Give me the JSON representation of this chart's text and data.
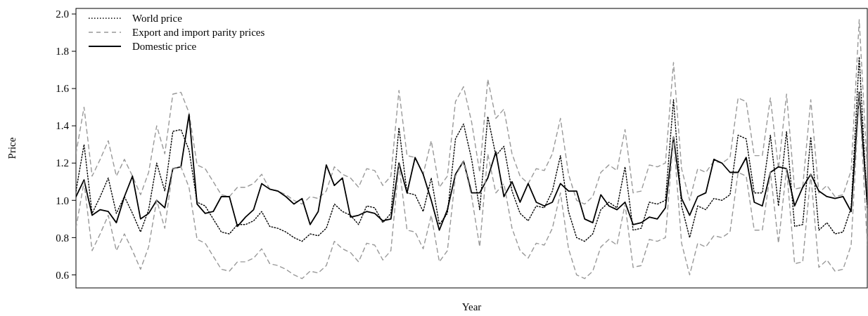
{
  "chart_data": {
    "type": "line",
    "xlabel": "Year",
    "ylabel": "Price",
    "legend": "top left",
    "ylim": [
      0.53,
      2.03
    ],
    "yticks": [
      0.6,
      0.8,
      {
        "value": 1,
        "label": "1.0"
      },
      1.2,
      1.4,
      1.6,
      1.8,
      {
        "value": 2,
        "label": "2.0"
      }
    ],
    "categories": [
      null,
      null,
      null,
      null,
      null,
      null,
      null,
      null,
      null,
      null,
      null,
      null,
      null,
      null,
      null,
      null,
      null,
      null,
      null,
      null,
      null,
      null,
      null,
      null,
      null,
      null,
      null,
      null,
      null,
      null,
      null,
      null,
      null,
      null,
      null,
      null,
      null,
      null,
      null,
      null,
      null,
      null,
      null,
      null,
      null,
      null,
      null,
      null,
      null,
      null,
      null,
      null,
      null,
      null,
      null,
      null,
      null,
      null,
      null,
      null,
      null,
      null,
      null,
      null,
      null,
      null,
      null,
      null,
      null,
      null,
      null,
      null,
      null,
      null,
      null,
      null,
      null,
      null,
      null,
      null,
      null,
      null,
      null,
      null,
      null,
      null,
      null,
      null,
      null,
      null,
      null,
      null,
      null,
      null,
      null,
      null,
      null,
      null,
      null
    ],
    "series": [
      {
        "name": "World price",
        "color": "#000000",
        "line_style": "dotted",
        "values": [
          1.05,
          1.3,
          0.93,
          1.02,
          1.12,
          0.93,
          1.02,
          0.93,
          0.83,
          0.95,
          1.2,
          1.05,
          1.37,
          1.38,
          1.27,
          0.99,
          0.97,
          0.9,
          0.83,
          0.82,
          0.87,
          0.87,
          0.89,
          0.94,
          0.86,
          0.85,
          0.83,
          0.8,
          0.78,
          0.82,
          0.81,
          0.85,
          0.98,
          0.94,
          0.92,
          0.87,
          0.97,
          0.96,
          0.88,
          0.93,
          1.39,
          1.04,
          1.03,
          0.94,
          1.12,
          0.87,
          0.93,
          1.33,
          1.41,
          1.22,
          0.95,
          1.45,
          1.24,
          1.29,
          1.05,
          0.93,
          0.89,
          0.97,
          0.96,
          1.05,
          1.24,
          0.94,
          0.8,
          0.78,
          0.82,
          0.95,
          0.99,
          0.96,
          1.18,
          0.84,
          0.85,
          0.99,
          0.98,
          1.0,
          1.54,
          0.97,
          0.8,
          0.97,
          0.95,
          1.01,
          1.0,
          1.03,
          1.35,
          1.33,
          1.04,
          1.04,
          1.35,
          0.97,
          1.37,
          0.86,
          0.87,
          1.34,
          0.84,
          0.88,
          0.82,
          0.83,
          0.96,
          1.77,
          0.96
        ]
      },
      {
        "name": "Export and import parity prices",
        "color": "#999999",
        "line_style": "dashed",
        "values": [
          1.25,
          1.5,
          1.13,
          1.22,
          1.32,
          1.13,
          1.22,
          1.13,
          1.03,
          1.15,
          1.4,
          1.25,
          1.57,
          1.58,
          1.47,
          1.19,
          1.17,
          1.1,
          1.03,
          1.02,
          1.07,
          1.07,
          1.09,
          1.14,
          1.06,
          1.05,
          1.03,
          1.0,
          0.98,
          1.02,
          1.01,
          1.05,
          1.18,
          1.14,
          1.12,
          1.07,
          1.17,
          1.16,
          1.08,
          1.13,
          1.59,
          1.24,
          1.23,
          1.14,
          1.32,
          1.07,
          1.13,
          1.53,
          1.61,
          1.42,
          1.15,
          1.65,
          1.44,
          1.49,
          1.25,
          1.13,
          1.09,
          1.17,
          1.16,
          1.25,
          1.44,
          1.14,
          1.0,
          0.98,
          1.02,
          1.15,
          1.19,
          1.16,
          1.38,
          1.04,
          1.05,
          1.19,
          1.18,
          1.2,
          1.74,
          1.17,
          1.0,
          1.17,
          1.15,
          1.21,
          1.2,
          1.23,
          1.55,
          1.53,
          1.24,
          1.24,
          1.55,
          1.17,
          1.57,
          1.06,
          1.07,
          1.54,
          1.04,
          1.08,
          1.02,
          1.03,
          1.16,
          1.97,
          1.16
        ]
      },
      {
        "name": "Domestic price",
        "color": "#000000",
        "line_style": "solid",
        "values": [
          1.02,
          1.11,
          0.92,
          0.95,
          0.94,
          0.88,
          1.02,
          1.13,
          0.9,
          0.93,
          1.0,
          0.96,
          1.17,
          1.18,
          1.46,
          0.98,
          0.93,
          0.94,
          1.02,
          1.02,
          0.86,
          0.91,
          0.95,
          1.09,
          1.06,
          1.05,
          1.02,
          0.98,
          1.01,
          0.87,
          0.94,
          1.19,
          1.08,
          1.12,
          0.91,
          0.92,
          0.94,
          0.93,
          0.89,
          0.9,
          1.2,
          1.04,
          1.23,
          1.14,
          1.0,
          0.84,
          0.95,
          1.14,
          1.21,
          1.04,
          1.04,
          1.12,
          1.26,
          1.02,
          1.1,
          0.99,
          1.09,
          0.99,
          0.97,
          0.99,
          1.09,
          1.05,
          1.05,
          0.9,
          0.88,
          1.03,
          0.97,
          0.95,
          0.99,
          0.87,
          0.88,
          0.91,
          0.9,
          0.96,
          1.34,
          1.01,
          0.92,
          1.02,
          1.04,
          1.22,
          1.2,
          1.15,
          1.15,
          1.23,
          0.99,
          0.97,
          1.15,
          1.18,
          1.17,
          0.97,
          1.07,
          1.14,
          1.05,
          1.02,
          1.01,
          1.02,
          0.94,
          1.58,
          0.98
        ]
      },
      {
        "color": "#999999",
        "line_style": "dashed",
        "values": [
          0.85,
          1.1,
          0.73,
          0.82,
          0.92,
          0.73,
          0.82,
          0.73,
          0.63,
          0.75,
          1.0,
          0.85,
          1.17,
          1.18,
          1.07,
          0.79,
          0.77,
          0.7,
          0.63,
          0.62,
          0.67,
          0.67,
          0.69,
          0.74,
          0.66,
          0.65,
          0.63,
          0.6,
          0.58,
          0.62,
          0.61,
          0.65,
          0.78,
          0.74,
          0.72,
          0.67,
          0.77,
          0.76,
          0.68,
          0.73,
          1.19,
          0.84,
          0.83,
          0.74,
          0.92,
          0.67,
          0.73,
          1.13,
          1.21,
          1.02,
          0.75,
          1.25,
          1.04,
          1.09,
          0.85,
          0.73,
          0.69,
          0.77,
          0.76,
          0.85,
          1.04,
          0.74,
          0.6,
          0.58,
          0.62,
          0.75,
          0.79,
          0.76,
          0.98,
          0.64,
          0.65,
          0.79,
          0.78,
          0.8,
          1.34,
          0.77,
          0.6,
          0.77,
          0.75,
          0.81,
          0.8,
          0.83,
          1.15,
          1.13,
          0.84,
          0.84,
          1.15,
          0.77,
          1.17,
          0.66,
          0.67,
          1.14,
          0.64,
          0.68,
          0.62,
          0.63,
          0.76,
          1.57,
          0.76
        ]
      }
    ]
  }
}
